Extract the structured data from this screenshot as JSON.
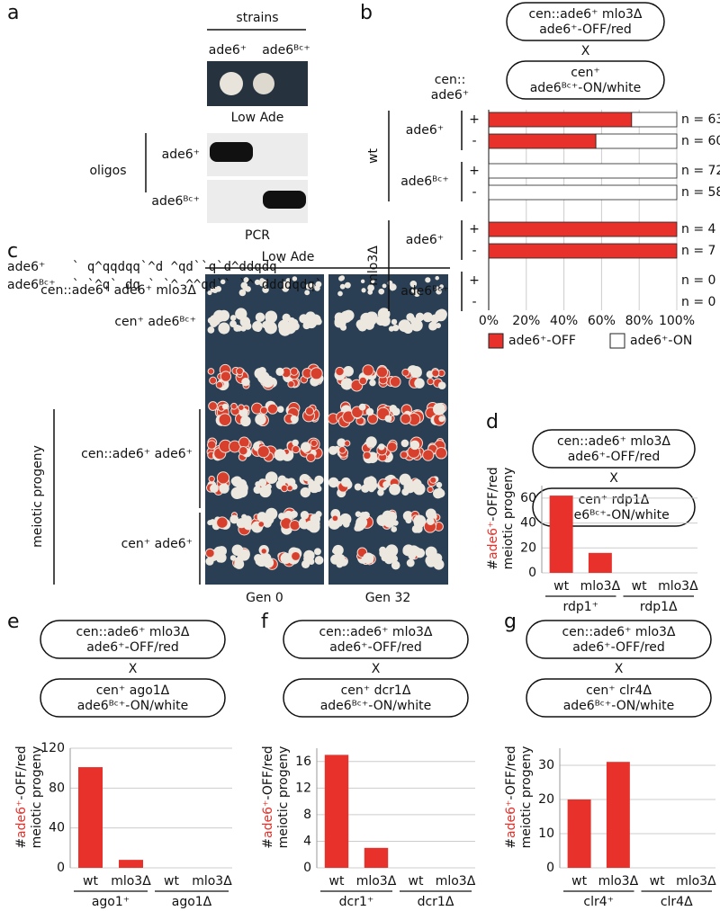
{
  "panel_labels": [
    "a",
    "b",
    "c",
    "d",
    "e",
    "f",
    "g"
  ],
  "panel_a": {
    "header": "strains",
    "strains": [
      "ade6⁺",
      "ade6ᴮᶜ⁺"
    ],
    "plate_label": "Low Ade",
    "oligos_label": "oligos",
    "gel_rows": [
      "ade6⁺",
      "ade6ᴮᶜ⁺"
    ],
    "gel_label": "PCR",
    "sequences": [
      {
        "name": "ade6⁺",
        "seq": "` q^qqdqq`^d   ^qd``q`d^ddqdq`"
      },
      {
        "name": "ade6ᴮᶜ⁺",
        "seq": "` `^q` dq ` `^ ^^qd`` `^ ddddqdq`"
      }
    ]
  },
  "panel_c": {
    "header": "Low Ade",
    "top_rows": [
      "cen::ade6⁺ ade6⁺ mlo3Δ",
      "cen⁺ ade6ᴮᶜ⁺"
    ],
    "progeny_label": "meiotic progeny",
    "progeny_rows": [
      "cen::ade6⁺ ade6⁺",
      "cen⁺ ade6⁺"
    ],
    "columns": [
      "Gen 0",
      "Gen 32"
    ]
  },
  "chart_data": [
    {
      "type": "stacked-bar",
      "cross": {
        "parent1": [
          "cen::ade6⁺ mlo3Δ",
          "ade6⁺-OFF/red"
        ],
        "x": "X",
        "parent2": [
          "cen⁺",
          "ade6ᴮᶜ⁺-ON/white"
        ],
        "left_label": [
          "cen::",
          "ade6⁺"
        ]
      },
      "genotypes": [
        "wt",
        "mlo3Δ"
      ],
      "alleles": [
        "ade6⁺",
        "ade6ᴮᶜ⁺",
        "ade6⁺",
        "ade6ᴮᶜ⁺"
      ],
      "categories": [
        "+",
        "-",
        "+",
        "-",
        "+",
        "-",
        "+",
        "-"
      ],
      "n_labels": [
        "n = 63",
        "n = 60",
        "n = 72",
        "n = 58",
        "n = 4",
        "n = 7",
        "n = 0",
        "n = 0"
      ],
      "series": [
        {
          "name": "ade6⁺-OFF",
          "color": "#e8312a",
          "values": [
            76,
            57,
            0,
            0,
            100,
            100,
            null,
            null
          ]
        },
        {
          "name": "ade6⁺-ON",
          "color": "#ffffff",
          "values": [
            24,
            43,
            100,
            100,
            0,
            0,
            null,
            null
          ]
        }
      ],
      "xlim": [
        0,
        100
      ],
      "xticks": [
        {
          "value": 0,
          "label": "0%"
        },
        {
          "value": 20,
          "label": "20%"
        },
        {
          "value": 40,
          "label": "40%"
        },
        {
          "value": 60,
          "label": "60%"
        },
        {
          "value": 80,
          "label": "80%"
        },
        {
          "value": 100,
          "label": "100%"
        }
      ],
      "grid": true
    },
    {
      "type": "bar",
      "cross": {
        "parent1": [
          "cen::ade6⁺ mlo3Δ",
          "ade6⁺-OFF/red"
        ],
        "x": "X",
        "parent2": [
          "cen⁺ rdp1Δ",
          "ade6ᴮᶜ⁺-ON/white"
        ]
      },
      "y_label": [
        "#",
        "ade6⁺",
        "-OFF/red",
        "meiotic progeny"
      ],
      "categories": [
        "wt",
        "mlo3Δ",
        "wt",
        "mlo3Δ"
      ],
      "groups": [
        "rdp1⁺",
        "rdp1Δ"
      ],
      "values": [
        62,
        16,
        0,
        0
      ],
      "color": "#e8312a",
      "ylim": [
        0,
        70
      ],
      "yticks": [
        0,
        20,
        40,
        60
      ],
      "grid": true
    },
    {
      "type": "bar",
      "cross": {
        "parent1": [
          "cen::ade6⁺ mlo3Δ",
          "ade6⁺-OFF/red"
        ],
        "x": "X",
        "parent2": [
          "cen⁺ ago1Δ",
          "ade6ᴮᶜ⁺-ON/white"
        ]
      },
      "y_label": [
        "#",
        "ade6⁺",
        "-OFF/red",
        "meiotic progeny"
      ],
      "categories": [
        "wt",
        "mlo3Δ",
        "wt",
        "mlo3Δ"
      ],
      "groups": [
        "ago1⁺",
        "ago1Δ"
      ],
      "values": [
        101,
        8,
        0,
        0
      ],
      "color": "#e8312a",
      "ylim": [
        0,
        120
      ],
      "yticks": [
        0,
        40,
        80,
        120
      ],
      "grid": true
    },
    {
      "type": "bar",
      "cross": {
        "parent1": [
          "cen::ade6⁺ mlo3Δ",
          "ade6⁺-OFF/red"
        ],
        "x": "X",
        "parent2": [
          "cen⁺ dcr1Δ",
          "ade6ᴮᶜ⁺-ON/white"
        ]
      },
      "y_label": [
        "#",
        "ade6⁺",
        "-OFF/red",
        "meiotic progeny"
      ],
      "categories": [
        "wt",
        "mlo3Δ",
        "wt",
        "mlo3Δ"
      ],
      "groups": [
        "dcr1⁺",
        "dcr1Δ"
      ],
      "values": [
        17,
        3,
        0,
        0
      ],
      "color": "#e8312a",
      "ylim": [
        0,
        18
      ],
      "yticks": [
        0,
        4,
        8,
        12,
        16
      ],
      "grid": true
    },
    {
      "type": "bar",
      "cross": {
        "parent1": [
          "cen::ade6⁺ mlo3Δ",
          "ade6⁺-OFF/red"
        ],
        "x": "X",
        "parent2": [
          "cen⁺ clr4Δ",
          "ade6ᴮᶜ⁺-ON/white"
        ]
      },
      "y_label": [
        "#",
        "ade6⁺",
        "-OFF/red",
        "meiotic progeny"
      ],
      "categories": [
        "wt",
        "mlo3Δ",
        "wt",
        "mlo3Δ"
      ],
      "groups": [
        "clr4⁺",
        "clr4Δ"
      ],
      "values": [
        20,
        31,
        0,
        0
      ],
      "color": "#e8312a",
      "ylim": [
        0,
        35
      ],
      "yticks": [
        0,
        10,
        20,
        30
      ],
      "grid": true
    }
  ]
}
